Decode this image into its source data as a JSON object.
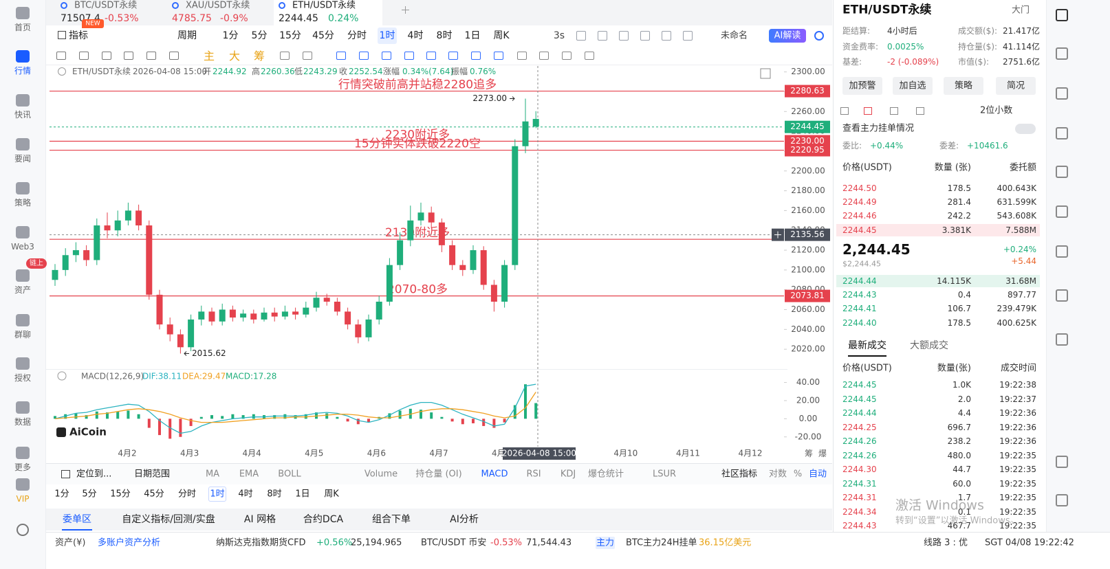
{
  "chart_data": {
    "type": "candlestick",
    "up_color": "#1fae7b",
    "down_color": "#e5424d",
    "open": [
      2090,
      2100,
      2115,
      2120,
      2110,
      2145,
      2140,
      2150,
      2160,
      2145,
      2075,
      2045,
      2035,
      2022,
      2050,
      2058,
      2048,
      2060,
      2052,
      2056,
      2050,
      2057,
      2053,
      2058,
      2055,
      2062,
      2072,
      2068,
      2058,
      2045,
      2032,
      2050,
      2068,
      2105,
      2130,
      2150,
      2158,
      2148,
      2125,
      2105,
      2100,
      2120,
      2085,
      2068,
      2105,
      2225,
      2244.92
    ],
    "high": [
      2106,
      2122,
      2128,
      2125,
      2152,
      2158,
      2160,
      2168,
      2166,
      2150,
      2080,
      2052,
      2040,
      2055,
      2064,
      2062,
      2066,
      2064,
      2060,
      2060,
      2062,
      2062,
      2064,
      2062,
      2068,
      2078,
      2076,
      2072,
      2062,
      2050,
      2055,
      2074,
      2112,
      2138,
      2165,
      2168,
      2164,
      2152,
      2130,
      2110,
      2125,
      2124,
      2090,
      2110,
      2232,
      2273,
      2260.36
    ],
    "low": [
      2084,
      2094,
      2108,
      2104,
      2105,
      2132,
      2134,
      2145,
      2140,
      2070,
      2040,
      2028,
      2015.62,
      2018,
      2044,
      2044,
      2044,
      2048,
      2048,
      2046,
      2048,
      2048,
      2050,
      2050,
      2052,
      2058,
      2064,
      2054,
      2040,
      2026,
      2028,
      2045,
      2064,
      2100,
      2124,
      2145,
      2142,
      2118,
      2100,
      2094,
      2096,
      2080,
      2058,
      2062,
      2100,
      2218,
      2243.29
    ],
    "close": [
      2100,
      2115,
      2120,
      2110,
      2145,
      2140,
      2150,
      2160,
      2145,
      2075,
      2045,
      2035,
      2022,
      2050,
      2058,
      2048,
      2060,
      2052,
      2056,
      2050,
      2057,
      2053,
      2058,
      2055,
      2062,
      2072,
      2068,
      2058,
      2045,
      2032,
      2050,
      2068,
      2105,
      2130,
      2150,
      2158,
      2148,
      2125,
      2105,
      2100,
      2120,
      2085,
      2068,
      2105,
      2225,
      2250,
      2252.54
    ],
    "categories": [
      "4月2",
      "4月3",
      "4月4",
      "4月5",
      "4月6",
      "4月7",
      "4月8",
      null,
      "4月10",
      "4月11",
      "4月12"
    ],
    "ylim": [
      2000,
      2306
    ],
    "yticks": [
      {
        "value": 2300,
        "label": "2300.00"
      },
      {
        "value": 2280,
        "label": "2280.00"
      },
      {
        "value": 2260,
        "label": "2260.00"
      },
      {
        "value": 2240,
        "label": "2240.00"
      },
      {
        "value": 2220,
        "label": "2220.00"
      },
      {
        "value": 2200,
        "label": "2200.00"
      },
      {
        "value": 2180,
        "label": "2180.00"
      },
      {
        "value": 2160,
        "label": "2160.00"
      },
      {
        "value": 2140,
        "label": "2140.00"
      },
      {
        "value": 2120,
        "label": "2120.00"
      },
      {
        "value": 2100,
        "label": "2100.00"
      },
      {
        "value": 2080,
        "label": "2080.00"
      },
      {
        "value": 2060,
        "label": "2060.00"
      },
      {
        "value": 2040,
        "label": "2040.00"
      },
      {
        "value": 2020,
        "label": "2020.00"
      }
    ],
    "levels": [
      {
        "value": 2280.63,
        "note": "行情突破前高并站稳2280追多"
      },
      {
        "value": 2230,
        "label": "2230.00",
        "note": "2230附近多"
      },
      {
        "value": 2220.95,
        "note": "15分钟实体跌破2220空"
      },
      {
        "value": 2131,
        "note": "2130附近多",
        "show_tag": false
      },
      {
        "value": 2073.81,
        "note": "2070-80多"
      }
    ],
    "level_color": "#e5424d",
    "last_price": 2244.45,
    "crosshair": {
      "value": 2135.56,
      "time": "2026-04-08 15:00"
    },
    "annotations": [
      {
        "value": 2273.0,
        "label": "2273.00"
      },
      {
        "value": 2015.62
      }
    ],
    "macd": {
      "title": "MACD(12,26,9)",
      "dif_label": "DIF:38.11",
      "dea_label": "DEA:29.47",
      "macd_label": "MACD:17.28",
      "dif_color": "#2bb3c0",
      "dea_color": "#f0a020",
      "ylim": [
        -27,
        48
      ],
      "yticks": [
        {
          "value": 40,
          "label": "40.00"
        },
        {
          "value": 20,
          "label": "20.00"
        },
        {
          "value": 0,
          "label": "0.00"
        },
        {
          "value": -20,
          "label": "-20.00"
        }
      ],
      "histogram": [
        3,
        5,
        6,
        4,
        8,
        7,
        8,
        9,
        5,
        -10,
        -18,
        -22,
        -20,
        -8,
        2,
        4,
        3,
        5,
        4,
        5,
        4,
        4,
        5,
        4,
        5,
        7,
        6,
        2,
        -3,
        -6,
        -4,
        2,
        6,
        9,
        11,
        10,
        7,
        2,
        -3,
        -6,
        -5,
        -8,
        -10,
        -4,
        15,
        38,
        17.28
      ],
      "dif": [
        0,
        3,
        6,
        7,
        10,
        12,
        14,
        16,
        15,
        8,
        -2,
        -10,
        -16,
        -14,
        -8,
        -4,
        -2,
        0,
        1,
        2,
        2,
        3,
        3,
        3,
        4,
        6,
        7,
        6,
        3,
        -2,
        -4,
        -1,
        4,
        10,
        15,
        18,
        18,
        15,
        10,
        5,
        1,
        -3,
        -8,
        -6,
        12,
        36,
        38.11
      ],
      "dea": [
        0,
        1,
        2,
        3,
        5,
        6,
        8,
        10,
        11,
        10,
        8,
        5,
        1,
        -2,
        -4,
        -4,
        -4,
        -3,
        -2,
        -1,
        0,
        1,
        1,
        2,
        2,
        3,
        4,
        5,
        5,
        4,
        2,
        1,
        1,
        3,
        5,
        8,
        10,
        11,
        11,
        10,
        8,
        6,
        3,
        1,
        3,
        12,
        29.47
      ]
    }
  },
  "ui": {
    "sidebar": [
      "首页",
      "行情",
      "快讯",
      "要闻",
      "策略",
      "Web3",
      "资产",
      "群聊",
      "授权",
      "数据",
      "更多",
      "VIP"
    ],
    "sidebar_badge": "链上",
    "tabs": [
      {
        "symbol": "BTC/USDT永续",
        "price": "71507.4",
        "change": "-0.53%"
      },
      {
        "symbol": "XAU/USDT永续",
        "price": "4785.75",
        "change": "-0.9%"
      },
      {
        "symbol": "ETH/USDT永续",
        "price": "2244.45",
        "change": "0.24%"
      }
    ],
    "new_badge": "NEW",
    "toolbar": {
      "indicators": "指标",
      "period": "周期",
      "intervals": [
        "1分",
        "5分",
        "15分",
        "45分",
        "分时",
        "1时",
        "4时",
        "8时",
        "1日",
        "周K"
      ],
      "refresh": "3s",
      "layout": "未命名",
      "ai": "AI解读",
      "tools": [
        "主",
        "大",
        "筹"
      ]
    },
    "info": {
      "symbol": "ETH/USDT永续",
      "time": "2026-04-08 15:00",
      "open_label": "开",
      "open": "2244.92",
      "high_label": "高",
      "high": "2260.36",
      "low_label": "低",
      "low": "2243.29",
      "close_label": "收",
      "close": "2252.54",
      "change_label": "涨幅",
      "change": "0.34%(7.64)",
      "amp_label": "振幅",
      "amp": "0.76%"
    },
    "logo": "AiCoin",
    "axis_tags": [
      "筹",
      "爆"
    ],
    "indicator_bar": {
      "locate": "定位到...",
      "range": "日期范围",
      "main": [
        "MA",
        "EMA",
        "BOLL"
      ],
      "sub": [
        "Volume",
        "持仓量 (OI)",
        "MACD",
        "RSI",
        "KDJ",
        "爆仓统计",
        "LSUR"
      ],
      "community": "社区指标",
      "log": "对数",
      "pct": "%",
      "auto": "自动"
    },
    "bottom_tabs": [
      "委单区",
      "自定义指标/回测/实盘",
      "AI 网格",
      "合约DCA",
      "组合下单",
      "AI分析"
    ],
    "status": {
      "assets": "资产(¥)",
      "multi": "多账户资产分析",
      "nq_name": "纳斯达克指数期货CFD",
      "nq_change": "+0.56%",
      "nq_price": "25,194.965",
      "btc_name": "BTC/USDT 币安",
      "btc_change": "-0.53%",
      "btc_price": "71,544.43",
      "main_tag": "主力",
      "main_text": "BTC主力24H挂单",
      "main_value": "36.15亿美元",
      "line": "线路 3 : 优",
      "clock": "SGT 04/08 19:22:42"
    },
    "panel": {
      "title": "ETH/USDT永续",
      "door": "大门",
      "stats": [
        [
          "距结算:",
          "4小时后"
        ],
        [
          "成交额($):",
          "21.417亿"
        ],
        [
          "资金费率:",
          "0.0025%"
        ],
        [
          "持仓量($):",
          "41.114亿"
        ],
        [
          "基差:",
          "-2 (-0.089%)"
        ],
        [
          "市值($):",
          "2751.6亿"
        ]
      ],
      "buttons": [
        "加预警",
        "加自选",
        "策略",
        "简况"
      ],
      "decimals": "2位小数",
      "depth_link": "查看主力挂单情况",
      "ratio_label": "委比:",
      "ratio": "+0.44%",
      "diff_label": "委差:",
      "diff": "+10461.6",
      "book_header": [
        "价格(USDT)",
        "数量 (张)",
        "委托额"
      ],
      "asks": [
        [
          "2244.50",
          "178.5",
          "400.643K"
        ],
        [
          "2244.49",
          "281.4",
          "631.599K"
        ],
        [
          "2244.46",
          "242.2",
          "543.608K"
        ],
        [
          "2244.45",
          "3.381K",
          "7.588M"
        ]
      ],
      "mid": "2,244.45",
      "mid_usd": "$2,244.45",
      "mid_change": "+0.24%",
      "mid_delta": "+5.44",
      "bids": [
        [
          "2244.44",
          "14.115K",
          "31.68M"
        ],
        [
          "2244.43",
          "0.4",
          "897.77"
        ],
        [
          "2244.41",
          "106.7",
          "239.479K"
        ],
        [
          "2244.40",
          "178.5",
          "400.625K"
        ]
      ],
      "trade_tabs": [
        "最新成交",
        "大额成交"
      ],
      "trade_header": [
        "价格(USDT)",
        "数量(张)",
        "成交时间"
      ],
      "trades": [
        {
          "price": "2244.45",
          "qty": "1.0K",
          "time": "19:22:38",
          "color": "#1fae7b"
        },
        {
          "price": "2244.45",
          "qty": "2.0",
          "time": "19:22:37",
          "color": "#1fae7b"
        },
        {
          "price": "2244.44",
          "qty": "4.4",
          "time": "19:22:36",
          "color": "#1fae7b"
        },
        {
          "price": "2244.25",
          "qty": "696.7",
          "time": "19:22:36",
          "color": "#e5424d"
        },
        {
          "price": "2244.26",
          "qty": "238.2",
          "time": "19:22:36",
          "color": "#1fae7b"
        },
        {
          "price": "2244.26",
          "qty": "480.0",
          "time": "19:22:35",
          "color": "#1fae7b"
        },
        {
          "price": "2244.30",
          "qty": "44.7",
          "time": "19:22:35",
          "color": "#e5424d"
        },
        {
          "price": "2244.31",
          "qty": "60.0",
          "time": "19:22:35",
          "color": "#1fae7b"
        },
        {
          "price": "2244.31",
          "qty": "1.7",
          "time": "19:22:35",
          "color": "#e5424d"
        },
        {
          "price": "2244.34",
          "qty": "0.1",
          "time": "19:22:35",
          "color": "#e5424d"
        },
        {
          "price": "2244.43",
          "qty": "467.7",
          "time": "19:22:35",
          "color": "#e5424d"
        }
      ]
    },
    "watermark": [
      "激活 Windows",
      "转到“设置”以激活 Windows。"
    ]
  }
}
